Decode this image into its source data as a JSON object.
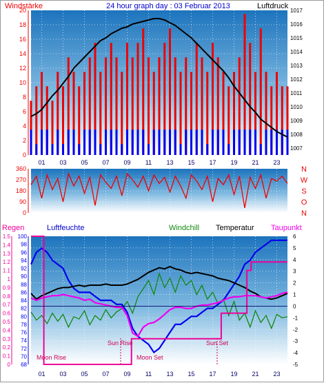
{
  "header": {
    "left_label": "Windstärke",
    "title": "24 hour graph day : 03 Februar 2013",
    "right_label": "Luftdruck"
  },
  "colors": {
    "wind": "#ee0000",
    "gust_blue": "#0000ee",
    "pressure": "#000000",
    "humidity": "#0000ee",
    "windchill": "#118811",
    "temperature": "#000000",
    "dewpoint": "#ee00ee",
    "rain": "#ee0099",
    "sun": "#cc0055",
    "sky_top": "#1f7fc4",
    "sky_bottom": "#ffffff"
  },
  "time_axis": {
    "ticks": [
      "01",
      "03",
      "05",
      "07",
      "09",
      "11",
      "13",
      "15",
      "17",
      "19",
      "21",
      "23"
    ],
    "start_hour": 0,
    "end_hour": 24
  },
  "chart_data": [
    {
      "type": "line",
      "panel": "wind_pressure",
      "left_axis": {
        "label": "Windstärke",
        "ylim": [
          0,
          20
        ],
        "ticks": [
          "0",
          "2",
          "4",
          "6",
          "8",
          "10",
          "12",
          "14",
          "16",
          "18",
          "20"
        ]
      },
      "right_axis": {
        "label": "Luftdruck",
        "ylim": [
          1006.5,
          1017
        ],
        "ticks": [
          "1007",
          "1008",
          "1009",
          "1010",
          "1011",
          "1012",
          "1013",
          "1014",
          "1015",
          "1016",
          "1017"
        ]
      },
      "series": [
        {
          "name": "",
          "axis": "right",
          "x": [
            0,
            0.5,
            1,
            1.5,
            2,
            2.5,
            3,
            3.5,
            4,
            4.5,
            5,
            5.5,
            6,
            6.5,
            7,
            7.5,
            8,
            8.5,
            9,
            9.5,
            10,
            10.5,
            11,
            11.5,
            12,
            12.5,
            13,
            13.5,
            14,
            14.5,
            15,
            15.5,
            16,
            16.5,
            17,
            17.5,
            18,
            18.5,
            19,
            19.5,
            20,
            20.5,
            21,
            21.5,
            22,
            22.5,
            23,
            23.5,
            24
          ],
          "values": [
            1009.3,
            1009.5,
            1009.8,
            1010.3,
            1010.8,
            1011.2,
            1011.7,
            1012.2,
            1012.8,
            1013.2,
            1013.6,
            1014.0,
            1014.4,
            1014.8,
            1015.0,
            1015.3,
            1015.5,
            1015.7,
            1015.8,
            1016.0,
            1016.1,
            1016.2,
            1016.3,
            1016.4,
            1016.4,
            1016.3,
            1016.1,
            1015.9,
            1015.6,
            1015.3,
            1015.0,
            1014.6,
            1014.2,
            1013.8,
            1013.4,
            1013.0,
            1012.6,
            1012.1,
            1011.5,
            1011.0,
            1010.5,
            1010.0,
            1009.6,
            1009.1,
            1008.8,
            1008.5,
            1008.2,
            1008.0,
            1007.8
          ]
        },
        {
          "name": "",
          "axis": "left",
          "style": "bars",
          "x": [
            0,
            0.5,
            1,
            1.5,
            2,
            2.5,
            3,
            3.5,
            4,
            4.5,
            5,
            5.5,
            6,
            6.5,
            7,
            7.5,
            8,
            8.5,
            9,
            9.5,
            10,
            10.5,
            11,
            11.5,
            12,
            12.5,
            13,
            13.5,
            14,
            14.5,
            15,
            15.5,
            16,
            16.5,
            17,
            17.5,
            18,
            18.5,
            19,
            19.5,
            20,
            20.5,
            21,
            21.5,
            22,
            22.5,
            23,
            23.5,
            24
          ],
          "values": [
            7.5,
            9.5,
            11.5,
            9.5,
            7.5,
            11.5,
            9.5,
            13.5,
            11.5,
            9.5,
            11.5,
            13.5,
            15.5,
            11.5,
            13.5,
            15.5,
            13.5,
            11.5,
            15.5,
            13.5,
            15.5,
            17.5,
            13.5,
            11.5,
            13.5,
            15.5,
            17.5,
            13.5,
            11.5,
            13.5,
            11.5,
            15.5,
            13.5,
            11.5,
            15.5,
            13.5,
            11.5,
            9.5,
            11.5,
            13.5,
            19.5,
            15.5,
            11.5,
            17.5,
            11.5,
            9.5,
            11.5,
            9.5,
            9.5
          ]
        },
        {
          "name": "",
          "axis": "left",
          "style": "bars",
          "x": [
            0,
            0.5,
            1,
            1.5,
            2,
            2.5,
            3,
            3.5,
            4,
            4.5,
            5,
            5.5,
            6,
            6.5,
            7,
            7.5,
            8,
            8.5,
            9,
            9.5,
            10,
            10.5,
            11,
            11.5,
            12,
            12.5,
            13,
            13.5,
            14,
            14.5,
            15,
            15.5,
            16,
            16.5,
            17,
            17.5,
            18,
            18.5,
            19,
            19.5,
            20,
            20.5,
            21,
            21.5,
            22,
            22.5,
            23,
            23.5,
            24
          ],
          "values": [
            3.5,
            1.5,
            3.5,
            3.5,
            1.5,
            3.5,
            1.5,
            3.5,
            3.5,
            1.5,
            3.5,
            3.5,
            3.5,
            1.5,
            3.5,
            3.5,
            3.5,
            1.5,
            3.5,
            3.5,
            3.5,
            3.5,
            1.5,
            3.5,
            3.5,
            3.5,
            3.5,
            3.5,
            1.5,
            3.5,
            3.5,
            3.5,
            3.5,
            1.5,
            3.5,
            3.5,
            3.5,
            1.5,
            3.5,
            3.5,
            3.5,
            3.5,
            3.5,
            1.5,
            3.5,
            3.5,
            3.5,
            3.5,
            3.5
          ]
        }
      ]
    },
    {
      "type": "line",
      "panel": "wind_direction",
      "left_axis": {
        "ylim": [
          0,
          360
        ],
        "ticks": [
          "0",
          "90",
          "180",
          "270",
          "360"
        ]
      },
      "right_axis": {
        "ticks": [
          "N",
          "W",
          "S",
          "O",
          "N"
        ]
      },
      "series": [
        {
          "name": "",
          "x": [
            0,
            0.5,
            1,
            1.5,
            2,
            2.5,
            3,
            3.5,
            4,
            4.5,
            5,
            5.5,
            6,
            6.5,
            7,
            7.5,
            8,
            8.5,
            9,
            9.5,
            10,
            10.5,
            11,
            11.5,
            12,
            12.5,
            13,
            13.5,
            14,
            14.5,
            15,
            15.5,
            16,
            16.5,
            17,
            17.5,
            18,
            18.5,
            19,
            19.5,
            20,
            20.5,
            21,
            21.5,
            22,
            22.5,
            23,
            23.5,
            24
          ],
          "values": [
            230,
            300,
            120,
            310,
            190,
            280,
            90,
            320,
            220,
            300,
            160,
            290,
            60,
            310,
            250,
            200,
            300,
            140,
            320,
            270,
            210,
            300,
            180,
            310,
            240,
            290,
            170,
            300,
            220,
            120,
            310,
            260,
            190,
            300,
            90,
            280,
            230,
            310,
            150,
            300,
            40,
            290,
            200,
            310,
            120,
            280,
            260,
            300,
            240
          ]
        }
      ]
    },
    {
      "type": "line",
      "panel": "climate",
      "left_axis_rain": {
        "label": "Regen",
        "ylim": [
          0,
          1.5
        ],
        "ticks": [
          "0",
          "0.1",
          "0.2",
          "0.3",
          "0.4",
          "0.5",
          "0.6",
          "0.7",
          "0.8",
          "0.9",
          "1",
          "1.1",
          "1.2",
          "1.3",
          "1.4",
          "1.5"
        ]
      },
      "left_axis_humidity": {
        "label": "Luftfeuchte",
        "ylim": [
          68,
          100
        ],
        "ticks": [
          "68",
          "70",
          "72",
          "74",
          "76",
          "78",
          "80",
          "82",
          "84",
          "86",
          "88",
          "90",
          "92",
          "94",
          "96",
          "98",
          "100"
        ]
      },
      "right_axis_temp": {
        "ylim": [
          -5,
          6
        ],
        "ticks": [
          "-5",
          "-4",
          "-3",
          "-2",
          "-1",
          "0",
          "1",
          "2",
          "3",
          "4",
          "5",
          "6"
        ]
      },
      "legend": [
        "Windchill",
        "Temperatur",
        "Taupunkt"
      ],
      "series": [
        {
          "name": "Luftfeuchte",
          "axis": "humidity",
          "x": [
            0,
            0.5,
            1,
            1.5,
            2,
            2.5,
            3,
            3.5,
            4,
            4.5,
            5,
            5.5,
            6,
            6.5,
            7,
            7.5,
            8,
            8.5,
            9,
            9.5,
            10,
            10.5,
            11,
            11.5,
            12,
            12.5,
            13,
            13.5,
            14,
            14.5,
            15,
            15.5,
            16,
            16.5,
            17,
            17.5,
            18,
            18.5,
            19,
            19.5,
            20,
            20.5,
            21,
            21.5,
            22,
            22.5,
            23,
            23.5,
            24
          ],
          "values": [
            93,
            96,
            97,
            96,
            94,
            93,
            92,
            89,
            87,
            86,
            86,
            86,
            85,
            84,
            84,
            84,
            83,
            83,
            81,
            77,
            75,
            74,
            73,
            71,
            72,
            74,
            76,
            78,
            78,
            79,
            80,
            80,
            81,
            82,
            82,
            83,
            84,
            86,
            88,
            90,
            93,
            94,
            96,
            97,
            98,
            99,
            99,
            99,
            99
          ]
        },
        {
          "name": "Windchill",
          "axis": "temp",
          "x": [
            0,
            0.5,
            1,
            1.5,
            2,
            2.5,
            3,
            3.5,
            4,
            4.5,
            5,
            5.5,
            6,
            6.5,
            7,
            7.5,
            8,
            8.5,
            9,
            9.5,
            10,
            10.5,
            11,
            11.5,
            12,
            12.5,
            13,
            13.5,
            14,
            14.5,
            15,
            15.5,
            16,
            16.5,
            17,
            17.5,
            18,
            18.5,
            19,
            19.5,
            20,
            20.5,
            21,
            21.5,
            22,
            22.5,
            23,
            23.5,
            24
          ],
          "values": [
            -0.5,
            -1.2,
            -0.8,
            -1.5,
            -0.6,
            -1.3,
            -0.7,
            -1.8,
            -0.9,
            -1.1,
            -0.4,
            -1.6,
            -0.8,
            -1.2,
            -0.3,
            -1.0,
            -0.5,
            -0.2,
            0.4,
            -0.6,
            0.8,
            1.5,
            2.2,
            1.0,
            2.8,
            1.6,
            2.4,
            1.2,
            2.6,
            1.8,
            2.2,
            1.0,
            1.8,
            0.6,
            1.2,
            0.2,
            0.6,
            -0.8,
            0.4,
            -1.2,
            -0.6,
            -1.8,
            -0.4,
            -1.4,
            -0.8,
            -1.9,
            -0.7,
            -1.0,
            -0.9
          ]
        },
        {
          "name": "Temperatur",
          "axis": "temp",
          "x": [
            0,
            0.5,
            1,
            1.5,
            2,
            2.5,
            3,
            3.5,
            4,
            4.5,
            5,
            5.5,
            6,
            6.5,
            7,
            7.5,
            8,
            8.5,
            9,
            9.5,
            10,
            10.5,
            11,
            11.5,
            12,
            12.5,
            13,
            13.5,
            14,
            14.5,
            15,
            15.5,
            16,
            16.5,
            17,
            17.5,
            18,
            18.5,
            19,
            19.5,
            20,
            20.5,
            21,
            21.5,
            22,
            22.5,
            23,
            23.5,
            24
          ],
          "values": [
            1.1,
            0.6,
            0.9,
            1.1,
            1.3,
            1.5,
            1.6,
            1.6,
            1.7,
            1.8,
            1.7,
            1.8,
            1.8,
            1.8,
            1.9,
            1.8,
            1.8,
            1.8,
            1.9,
            2.1,
            2.3,
            2.6,
            2.9,
            3.1,
            3.3,
            3.2,
            3.4,
            3.2,
            3.1,
            2.9,
            2.8,
            2.9,
            2.8,
            2.7,
            2.6,
            2.4,
            2.3,
            2.2,
            2.0,
            1.8,
            1.6,
            1.3,
            1.1,
            0.8,
            0.7,
            0.6,
            0.7,
            0.9,
            1.1
          ]
        },
        {
          "name": "Taupunkt",
          "axis": "temp",
          "x": [
            0,
            0.5,
            1,
            1.5,
            2,
            2.5,
            3,
            3.5,
            4,
            4.5,
            5,
            5.5,
            6,
            6.5,
            7,
            7.5,
            8,
            8.5,
            9,
            9.5,
            10,
            10.5,
            11,
            11.5,
            12,
            12.5,
            13,
            13.5,
            14,
            14.5,
            15,
            15.5,
            16,
            16.5,
            17,
            17.5,
            18,
            18.5,
            19,
            19.5,
            20,
            20.5,
            21,
            21.5,
            22,
            22.5,
            23,
            23.5,
            24
          ],
          "values": [
            0.7,
            0.5,
            0.7,
            0.8,
            0.9,
            0.9,
            1.0,
            0.9,
            0.8,
            0.7,
            0.5,
            0.6,
            0.3,
            0.2,
            0.1,
            0.0,
            -0.1,
            -0.1,
            -0.8,
            -2.3,
            -2.6,
            -1.8,
            -1.5,
            -1.4,
            -1.1,
            -0.7,
            -0.3,
            -0.1,
            -0.1,
            -0.2,
            -0.2,
            0.0,
            0.1,
            0.1,
            0.2,
            0.3,
            0.5,
            0.7,
            0.8,
            0.8,
            0.9,
            0.9,
            0.9,
            0.8,
            0.7,
            0.8,
            0.9,
            1.1,
            1.2
          ]
        },
        {
          "name": "Regen",
          "axis": "rain",
          "style": "step",
          "x": [
            0,
            1.2,
            1.2,
            8.8,
            8.8,
            9.4,
            9.4,
            13.8,
            13.8,
            17.8,
            17.8,
            19.2,
            19.2,
            20.2,
            20.2,
            20.6,
            20.6,
            24
          ],
          "values": [
            1.5,
            1.5,
            0,
            0,
            0,
            0,
            0.3,
            0.3,
            0.3,
            0.3,
            0.6,
            0.6,
            0.6,
            0.6,
            1.1,
            1.1,
            1.2,
            1.2
          ]
        }
      ],
      "annotations": [
        "Moon Rise",
        "Sun Rise",
        "Moon Set",
        "Sun Set"
      ]
    }
  ]
}
